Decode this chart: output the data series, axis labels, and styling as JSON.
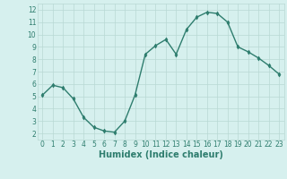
{
  "xlabel": "Humidex (Indice chaleur)",
  "x": [
    0,
    1,
    2,
    3,
    4,
    5,
    6,
    7,
    8,
    9,
    10,
    11,
    12,
    13,
    14,
    15,
    16,
    17,
    18,
    19,
    20,
    21,
    22,
    23
  ],
  "y": [
    5.1,
    5.9,
    5.7,
    4.8,
    3.3,
    2.5,
    2.2,
    2.1,
    3.0,
    5.1,
    8.4,
    9.1,
    9.6,
    8.4,
    10.4,
    11.4,
    11.8,
    11.7,
    11.0,
    9.0,
    8.6,
    8.1,
    7.5,
    6.8
  ],
  "line_color": "#2e7d6e",
  "marker": "d",
  "marker_size": 2.5,
  "bg_color": "#d6f0ee",
  "grid_color": "#b8d8d4",
  "ylim": [
    1.5,
    12.5
  ],
  "xlim": [
    -0.5,
    23.5
  ],
  "yticks": [
    2,
    3,
    4,
    5,
    6,
    7,
    8,
    9,
    10,
    11,
    12
  ],
  "xticks": [
    0,
    1,
    2,
    3,
    4,
    5,
    6,
    7,
    8,
    9,
    10,
    11,
    12,
    13,
    14,
    15,
    16,
    17,
    18,
    19,
    20,
    21,
    22,
    23
  ],
  "tick_fontsize": 5.5,
  "xlabel_fontsize": 7
}
